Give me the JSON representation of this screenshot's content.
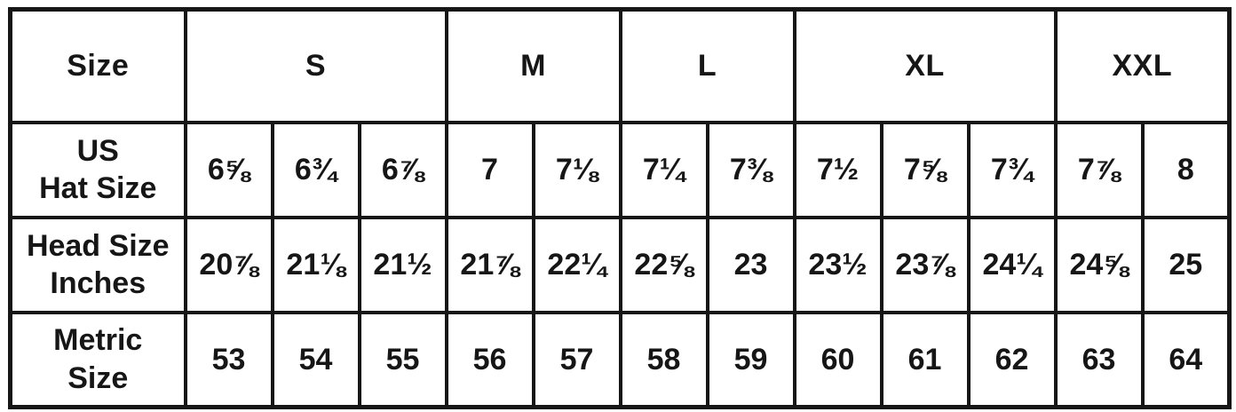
{
  "chart_data": {
    "type": "table",
    "corner_label": "Size",
    "size_groups": [
      {
        "label": "S",
        "span": 3
      },
      {
        "label": "M",
        "span": 2
      },
      {
        "label": "L",
        "span": 2
      },
      {
        "label": "XL",
        "span": 3
      },
      {
        "label": "XXL",
        "span": 2
      }
    ],
    "rows": [
      {
        "label1": "US",
        "label2": "Hat Size",
        "values": [
          "6⅝",
          "6¾",
          "6⅞",
          "7",
          "7⅛",
          "7¼",
          "7⅜",
          "7½",
          "7⅝",
          "7¾",
          "7⅞",
          "8"
        ]
      },
      {
        "label1": "Head Size",
        "label2": "Inches",
        "values": [
          "20⅞",
          "21⅛",
          "21½",
          "21⅞",
          "22¼",
          "22⅝",
          "23",
          "23½",
          "23⅞",
          "24¼",
          "24⅝",
          "25"
        ]
      },
      {
        "label1": "Metric",
        "label2": "Size",
        "values": [
          "53",
          "54",
          "55",
          "56",
          "57",
          "58",
          "59",
          "60",
          "61",
          "62",
          "63",
          "64"
        ]
      }
    ],
    "colors": {
      "border": "#161616",
      "text": "#161616",
      "background": "#ffffff"
    }
  }
}
